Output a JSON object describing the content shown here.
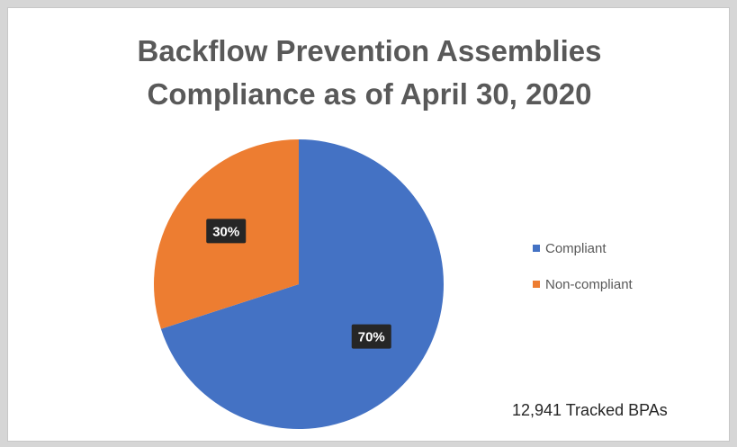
{
  "chart_data": {
    "type": "pie",
    "title": "Backflow Prevention Assemblies Compliance as of April 30, 2020",
    "title_lines": [
      "Backflow Prevention Assemblies",
      "Compliance as of April 30, 2020"
    ],
    "slices": [
      {
        "label": "Compliant",
        "value": 70,
        "display": "70%",
        "color": "#4472c4"
      },
      {
        "label": "Non-compliant",
        "value": 30,
        "display": "30%",
        "color": "#ed7d31"
      }
    ],
    "legend_position": "right",
    "annotation": "12,941 Tracked BPAs"
  }
}
